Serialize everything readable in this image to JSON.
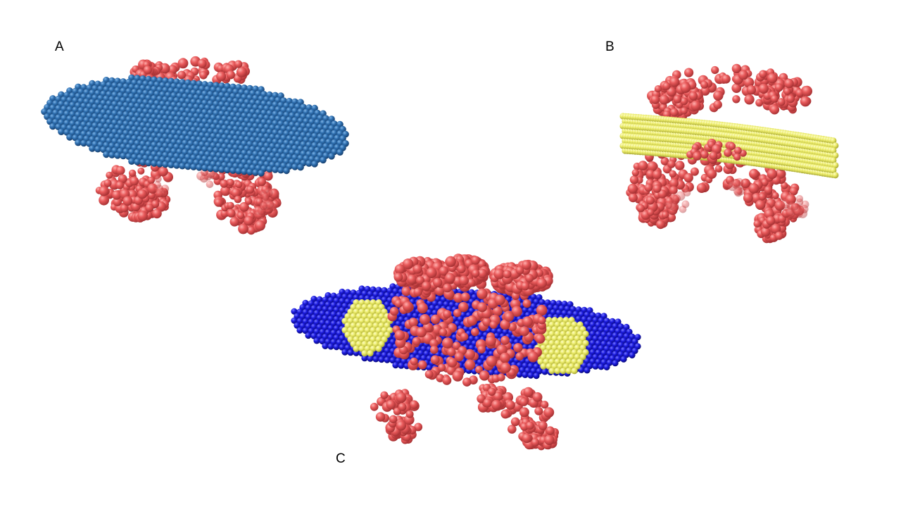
{
  "panels": {
    "a": {
      "label": "A"
    },
    "b": {
      "label": "B"
    },
    "c": {
      "label": "C"
    }
  },
  "colors": {
    "background": "#ffffff",
    "protein": "#e8595a",
    "protein_dark": "#b83a3c",
    "disc_blue_light": "#2e6fb0",
    "disc_blue_dark": "#1a4a80",
    "lipid_yellow": "#ecec6a",
    "lipid_yellow_dark": "#b8b840",
    "disc_blue_deep": "#1c1ce0",
    "disc_blue_deep_dark": "#0c0c90"
  }
}
